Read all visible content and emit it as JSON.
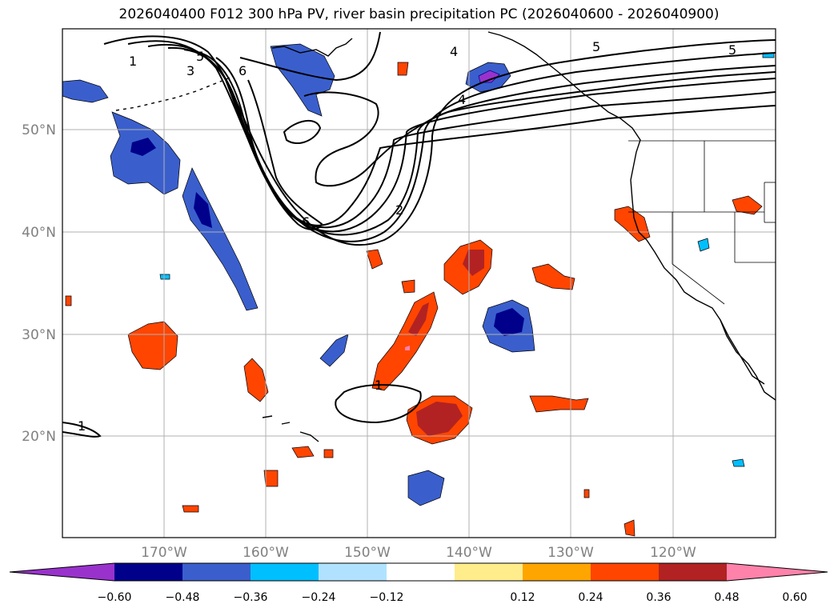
{
  "title": "2026040400 F012 300 hPa PV, river basin precipitation PC (2026040600 - 2026040900)",
  "lat_labels": [
    "50°N",
    "40°N",
    "30°N",
    "20°N"
  ],
  "lon_labels": [
    "170°W",
    "160°W",
    "150°W",
    "140°W",
    "130°W",
    "120°W"
  ],
  "colorbar": {
    "colors": [
      "#9932cc",
      "#00008b",
      "#3a5fcd",
      "#00bfff",
      "#b0e2ff",
      "#ffffff",
      "#ffec8b",
      "#ffa500",
      "#ff4500",
      "#b22222",
      "#ff82ab"
    ],
    "ticks": [
      "−0.60",
      "−0.48",
      "−0.36",
      "−0.24",
      "−0.12",
      "0.12",
      "0.24",
      "0.36",
      "0.48",
      "0.60"
    ]
  },
  "pv_labels": [
    "1",
    "3",
    "5",
    "6",
    "4",
    "5",
    "5",
    "4",
    "2",
    "6",
    "1",
    "1"
  ]
}
